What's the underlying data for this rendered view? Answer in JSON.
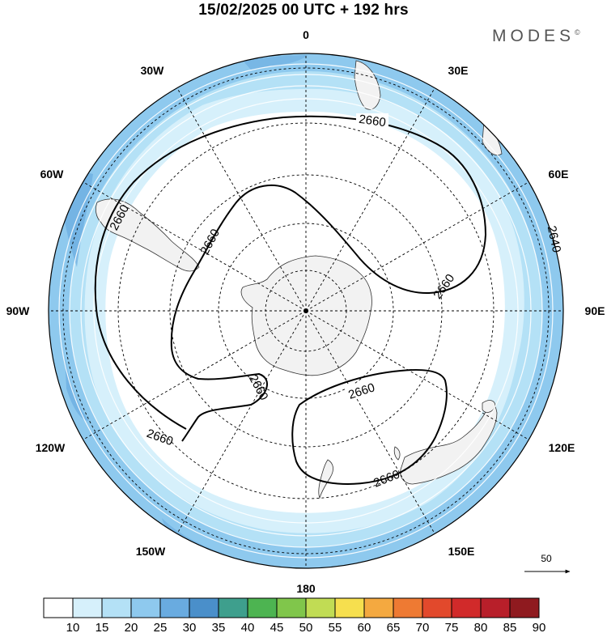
{
  "title": "15/02/2025  00 UTC  + 192 hrs",
  "brand": "MODES",
  "brand_mark": "©",
  "longitude_labels": {
    "lon_0": "0",
    "lon_30e": "30E",
    "lon_60e": "60E",
    "lon_90e": "90E",
    "lon_120e": "120E",
    "lon_150e": "150E",
    "lon_180": "180",
    "lon_150w": "150W",
    "lon_120w": "120W",
    "lon_90w": "90W",
    "lon_60w": "60W",
    "lon_30w": "30W"
  },
  "contour_labels": {
    "c1": "2660",
    "c2": "2660",
    "c3": "2660",
    "c4": "2660",
    "c5": "2660",
    "c6": "2660",
    "c7": "2660",
    "c8": "2660",
    "c9": "2640"
  },
  "reference_vector": {
    "value": "50"
  },
  "colorbar": {
    "labels": [
      "10",
      "15",
      "20",
      "25",
      "30",
      "35",
      "40",
      "45",
      "50",
      "55",
      "60",
      "65",
      "70",
      "75",
      "80",
      "85",
      "90"
    ],
    "colors": [
      "#ffffff",
      "#d6f0fb",
      "#b4e1f6",
      "#8ec9ee",
      "#69abe0",
      "#4a8fca",
      "#3e9f8d",
      "#4db451",
      "#80c64b",
      "#c1dc54",
      "#f6df4e",
      "#f4a940",
      "#ee7a33",
      "#e2492c",
      "#d12a2a",
      "#b81f2a",
      "#8f1a1f"
    ]
  }
}
